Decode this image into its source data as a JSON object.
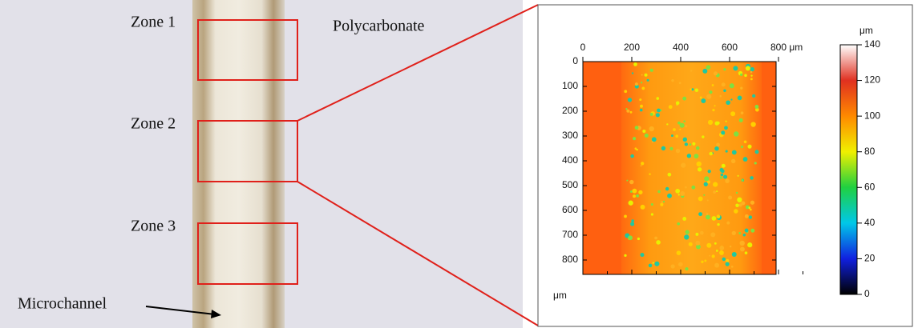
{
  "photo": {
    "zones": [
      "Zone 1",
      "Zone 2",
      "Zone 3"
    ],
    "material": "Polycarbonate",
    "channel": "Microchannel"
  },
  "height_map": {
    "x_ticks": [
      "0",
      "200",
      "400",
      "600",
      "800 μm"
    ],
    "y_ticks": [
      "0",
      "100",
      "200",
      "300",
      "400",
      "500",
      "600",
      "700",
      "800"
    ],
    "y_unit": "μm",
    "colorbar": {
      "unit": "μm",
      "ticks": [
        "140",
        "120",
        "100",
        "80",
        "60",
        "40",
        "20",
        "0"
      ]
    }
  }
}
